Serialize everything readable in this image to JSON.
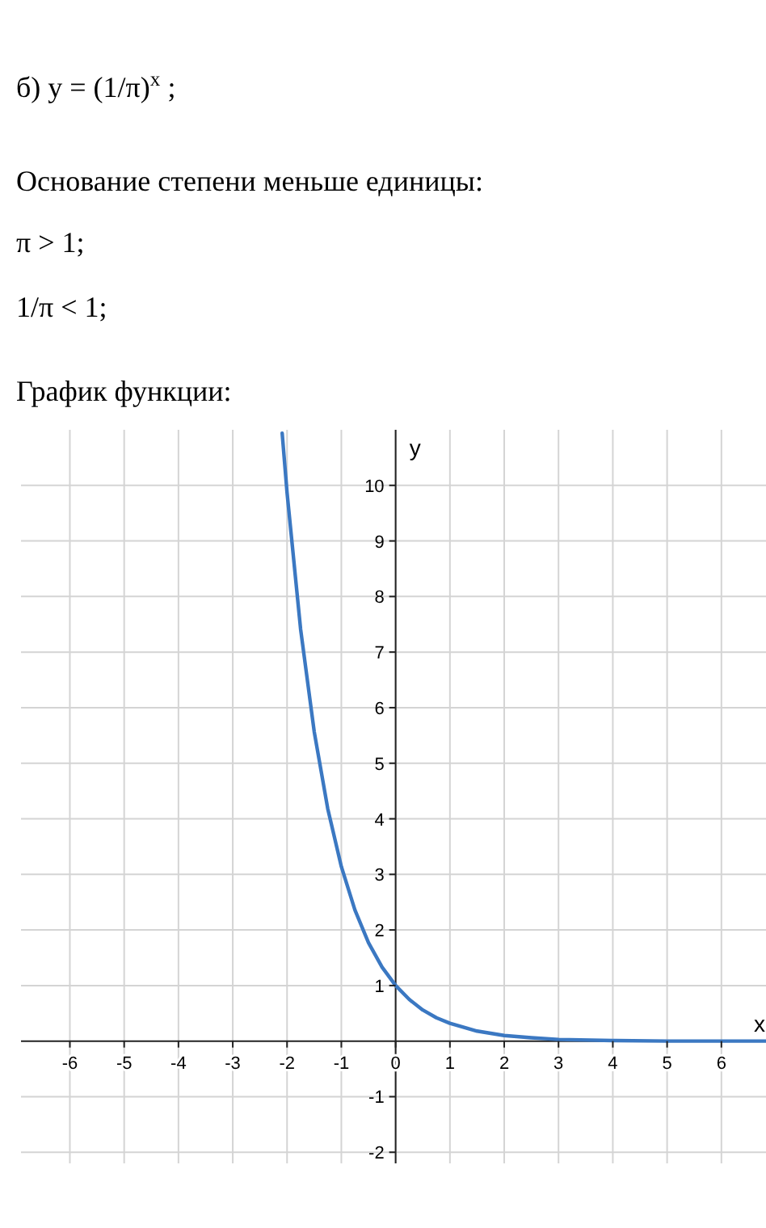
{
  "chart_data": {
    "type": "line",
    "title": "б) y = (1/π)$^{x}$ ;",
    "annotations": [
      "Основание степени меньше единицы:",
      "π > 1;",
      "1/π < 1;",
      "График функции:"
    ],
    "xlabel": "x",
    "ylabel": "y",
    "x": [
      -2.09,
      -2,
      -1.75,
      -1.5,
      -1.25,
      -1,
      -0.75,
      -0.5,
      -0.25,
      0,
      0.25,
      0.5,
      0.75,
      1,
      1.5,
      2,
      2.5,
      3,
      4,
      5,
      6,
      7
    ],
    "series": [
      {
        "color": "#3b78c2",
        "values": [
          10.94,
          9.87,
          7.41,
          5.57,
          4.18,
          3.14,
          2.36,
          1.77,
          1.33,
          1,
          0.75,
          0.56,
          0.42,
          0.32,
          0.18,
          0.1,
          0.06,
          0.03,
          0.01,
          0,
          0,
          0
        ]
      }
    ],
    "xlim": [
      -6.9,
      7
    ],
    "ylim": [
      -2.2,
      11
    ],
    "xticks": [
      -6,
      -5,
      -4,
      -3,
      -2,
      -1,
      0,
      1,
      2,
      3,
      4,
      5,
      6
    ],
    "yticks": [
      -2,
      -1,
      1,
      2,
      3,
      4,
      5,
      6,
      7,
      8,
      9,
      10
    ],
    "grid": true,
    "line_style": "solid"
  }
}
